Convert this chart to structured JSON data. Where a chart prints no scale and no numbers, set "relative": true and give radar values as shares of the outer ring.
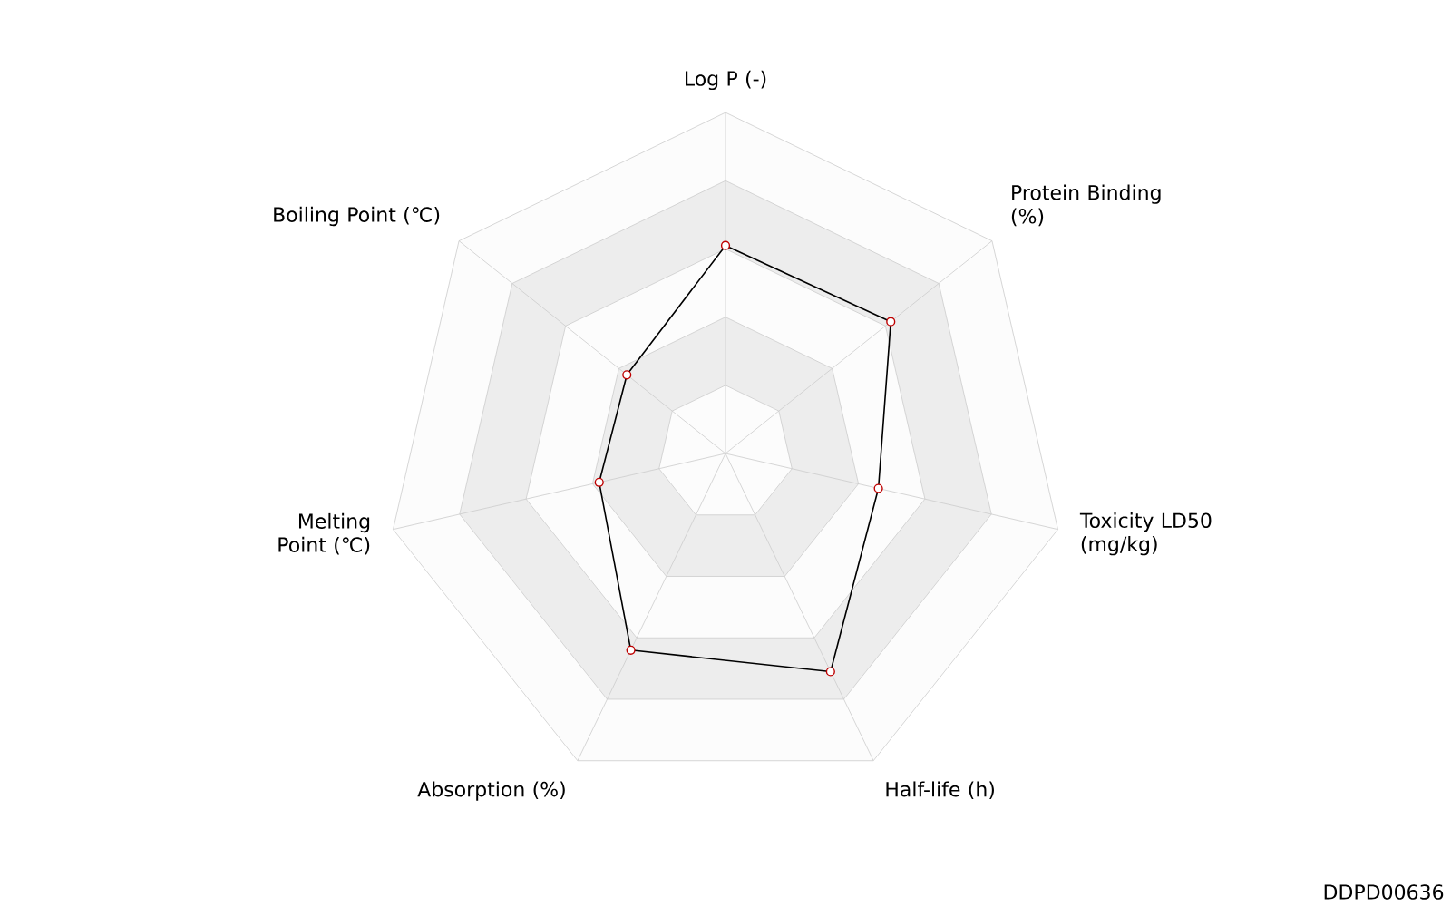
{
  "chart_data": {
    "type": "radar",
    "categories": [
      "Log P (-)",
      "Protein Binding (%)",
      "Toxicity LD50 (mg/kg)",
      "Half-life (h)",
      "Absorption (%)",
      "Melting Point (℃)",
      "Boiling Point (℃)"
    ],
    "relative": true,
    "series": [
      {
        "color": "#000000",
        "values": [
          0.61,
          0.62,
          0.46,
          0.71,
          0.64,
          0.38,
          0.37
        ]
      }
    ],
    "marker": "circle",
    "grid": true,
    "annotations": [
      "DDPD00636"
    ]
  }
}
